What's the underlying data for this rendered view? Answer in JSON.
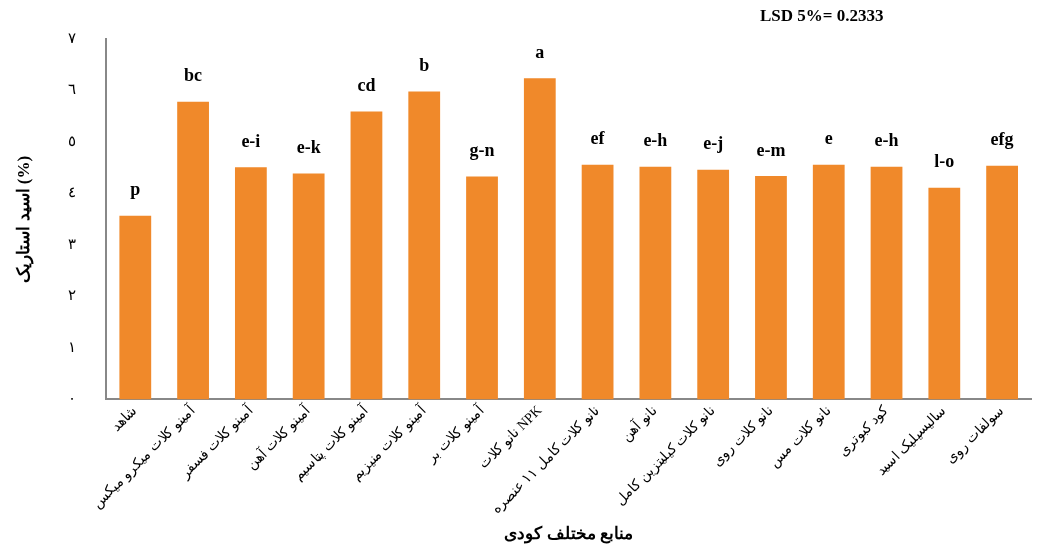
{
  "chart_data": {
    "type": "bar",
    "ylabel": "اسید استاریک (%)",
    "xlabel": "منابع مختلف کودی",
    "categories": [
      "شاهد",
      "آمینو کلات میکرو میکس",
      "آمینو کلات فسفر",
      "آمینو کلات آهن",
      "آمینو کلات پتاسیم",
      "آمینو کلات منیزیم",
      "آمینو کلات بر",
      "نانو کلات NPK",
      "نانو کلات کامل ١١ عنصره",
      "نانو آهن",
      "نانو کلات کیلیتزین کامل",
      "نانو کلات روی",
      "نانو کلات مس",
      "کود کبوتری",
      "سالیسیلیک اسید",
      "سولفات روی"
    ],
    "values": [
      3.57,
      5.78,
      4.51,
      4.39,
      5.59,
      5.98,
      4.33,
      6.24,
      4.56,
      4.52,
      4.46,
      4.34,
      4.56,
      4.52,
      4.11,
      4.54
    ],
    "value_labels": [
      "p",
      "bc",
      "e-i",
      "e-k",
      "cd",
      "b",
      "g-n",
      "a",
      "ef",
      "e-h",
      "e-j",
      "e-m",
      "e",
      "e-h",
      "l-o",
      "efg"
    ],
    "color": "#f0892a",
    "ylim": [
      0,
      7
    ],
    "yticks": [
      {
        "value": 0,
        "label": "٠"
      },
      {
        "value": 1,
        "label": "١"
      },
      {
        "value": 2,
        "label": "٢"
      },
      {
        "value": 3,
        "label": "٣"
      },
      {
        "value": 4,
        "label": "٤"
      },
      {
        "value": 5,
        "label": "٥"
      },
      {
        "value": 6,
        "label": "٦"
      },
      {
        "value": 7,
        "label": "٧"
      }
    ],
    "annotations": [
      "LSD 5%= 0.2333"
    ],
    "grid": false,
    "legend": false
  }
}
